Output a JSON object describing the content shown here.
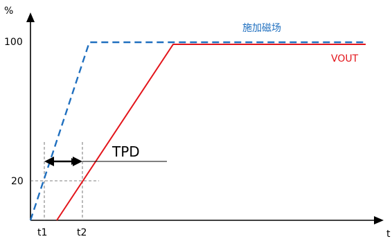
{
  "axes": {
    "y_label": "%",
    "x_label": "t",
    "y_ticks": [
      {
        "label": "100",
        "value": 100
      },
      {
        "label": "20",
        "value": 20
      }
    ],
    "x_ticks": [
      {
        "label": "t1"
      },
      {
        "label": "t2"
      }
    ]
  },
  "series": [
    {
      "name": "施加磁场",
      "style": "dashed",
      "color": "#1f6fbf"
    },
    {
      "name": "VOUT",
      "style": "solid",
      "color": "#e3151b"
    }
  ],
  "annotation": {
    "label": "TPD"
  }
}
